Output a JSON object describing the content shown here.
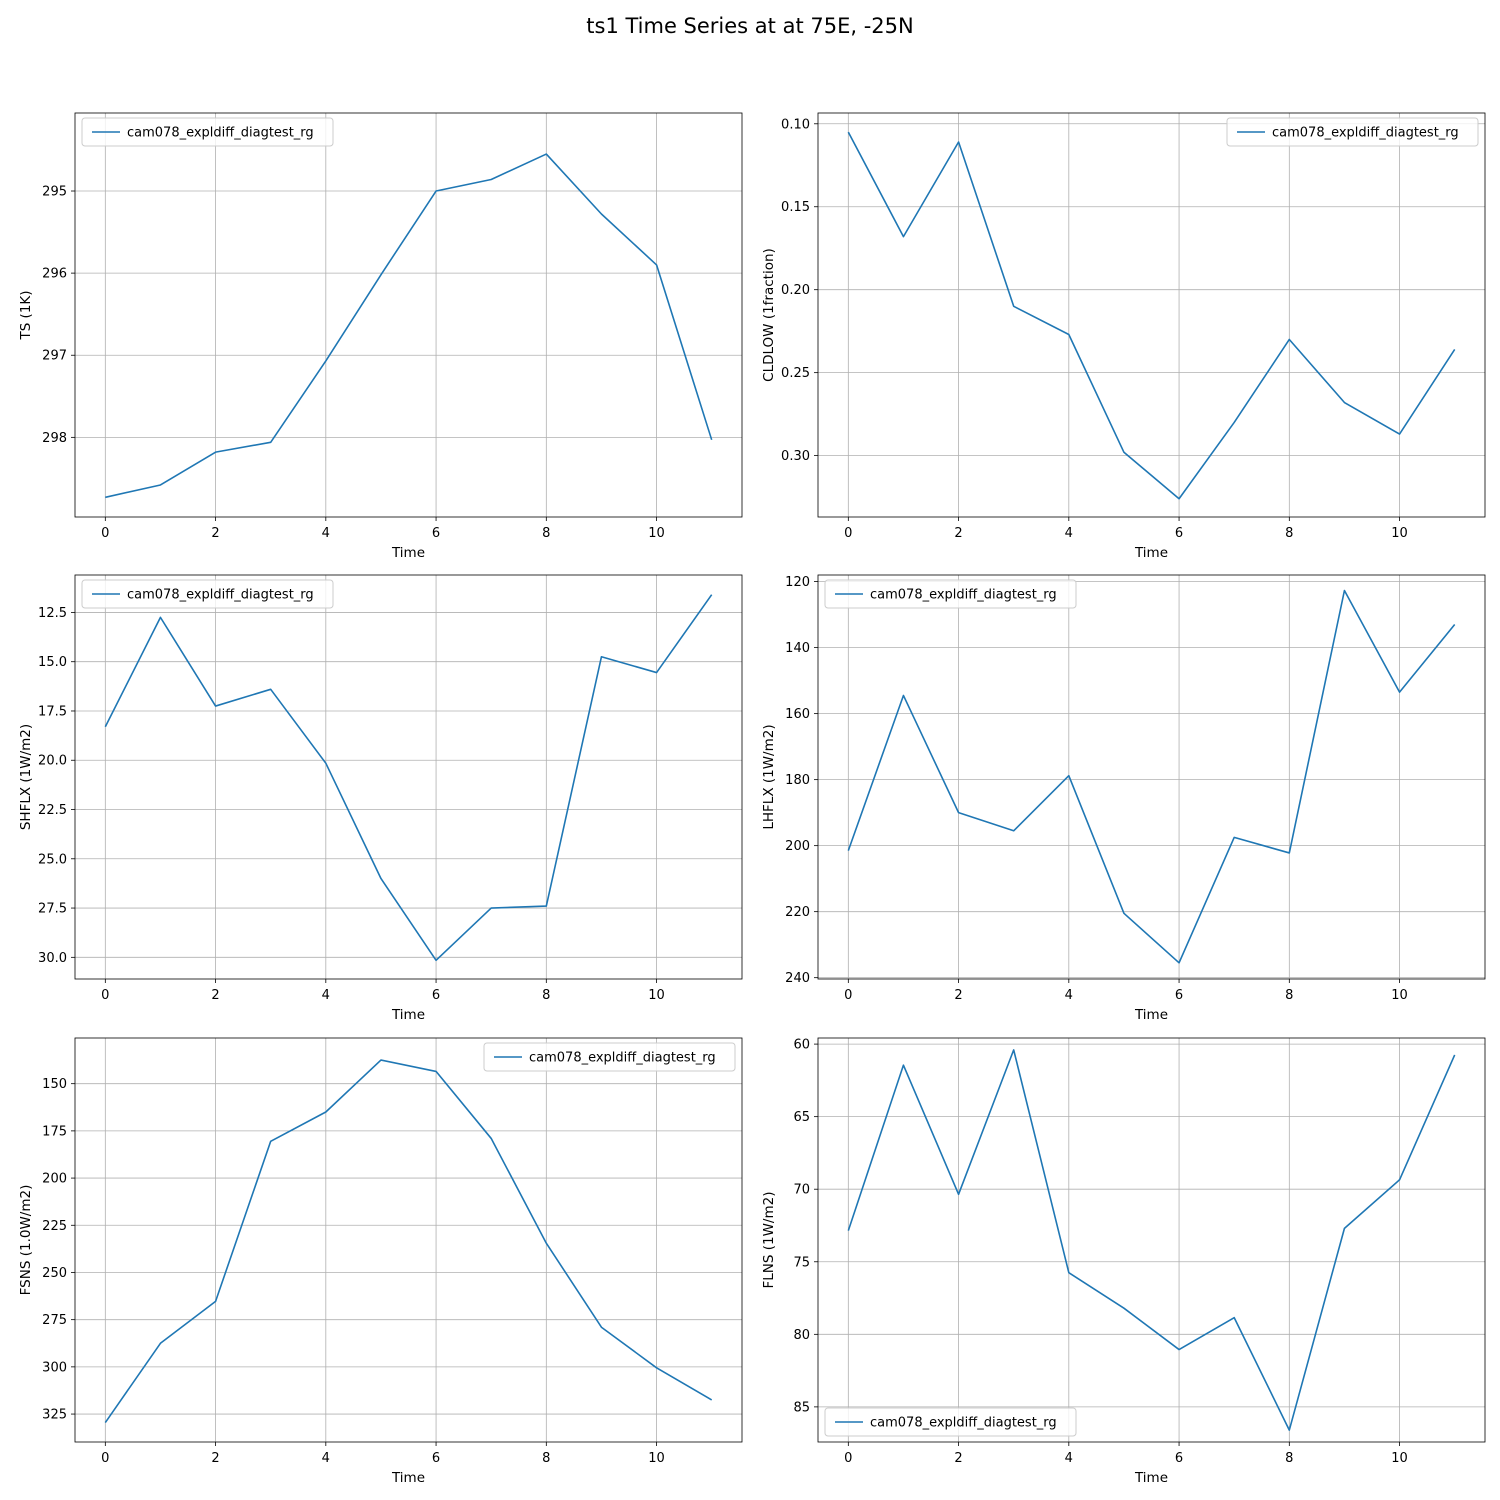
{
  "figure": {
    "title": "ts1 Time Series at at 75E, -25N"
  },
  "chart_data": [
    {
      "type": "line",
      "xlabel": "Time",
      "ylabel": "TS (1K)",
      "x": [
        0,
        1,
        2,
        3,
        4,
        5,
        6,
        7,
        8,
        9,
        10,
        11
      ],
      "series": [
        {
          "name": "cam078_expldiff_diagtest_rg",
          "values": [
            298.73,
            298.58,
            298.18,
            298.06,
            297.07,
            296.02,
            295.0,
            294.86,
            294.55,
            295.28,
            295.9,
            298.03
          ]
        }
      ],
      "ylim": [
        294.05,
        298.97
      ],
      "yinverted": true,
      "yticks": [
        295,
        296,
        297,
        298
      ],
      "ytick_labels": [
        "295",
        "296",
        "297",
        "298"
      ],
      "xticks": [
        0,
        2,
        4,
        6,
        8,
        10
      ],
      "xtick_labels": [
        "0",
        "2",
        "4",
        "6",
        "8",
        "10"
      ],
      "xlim": [
        -0.55,
        11.55
      ],
      "grid": true,
      "legend": "upper left",
      "color": "#1f77b4"
    },
    {
      "type": "line",
      "xlabel": "Time",
      "ylabel": "CLDLOW (1fraction)",
      "x": [
        0,
        1,
        2,
        3,
        4,
        5,
        6,
        7,
        8,
        9,
        10,
        11
      ],
      "series": [
        {
          "name": "cam078_expldiff_diagtest_rg",
          "values": [
            0.105,
            0.168,
            0.111,
            0.21,
            0.227,
            0.298,
            0.326,
            0.28,
            0.23,
            0.268,
            0.287,
            0.236
          ]
        }
      ],
      "ylim": [
        0.0935,
        0.337
      ],
      "yinverted": true,
      "yticks": [
        0.1,
        0.15,
        0.2,
        0.25,
        0.3
      ],
      "ytick_labels": [
        "0.10",
        "0.15",
        "0.20",
        "0.25",
        "0.30"
      ],
      "xticks": [
        0,
        2,
        4,
        6,
        8,
        10
      ],
      "xtick_labels": [
        "0",
        "2",
        "4",
        "6",
        "8",
        "10"
      ],
      "xlim": [
        -0.55,
        11.55
      ],
      "grid": true,
      "legend": "upper right",
      "color": "#1f77b4"
    },
    {
      "type": "line",
      "xlabel": "Time",
      "ylabel": "SHFLX (1W/m2)",
      "x": [
        0,
        1,
        2,
        3,
        4,
        5,
        6,
        7,
        8,
        9,
        10,
        11
      ],
      "series": [
        {
          "name": "cam078_expldiff_diagtest_rg",
          "values": [
            18.3,
            12.75,
            17.25,
            16.4,
            20.15,
            26.0,
            30.15,
            27.5,
            27.4,
            14.75,
            15.55,
            11.6
          ]
        }
      ],
      "ylim": [
        10.6,
        31.1
      ],
      "yinverted": true,
      "yticks": [
        12.5,
        15.0,
        17.5,
        20.0,
        22.5,
        25.0,
        27.5,
        30.0
      ],
      "ytick_labels": [
        "12.5",
        "15.0",
        "17.5",
        "20.0",
        "22.5",
        "25.0",
        "27.5",
        "30.0"
      ],
      "xticks": [
        0,
        2,
        4,
        6,
        8,
        10
      ],
      "xtick_labels": [
        "0",
        "2",
        "4",
        "6",
        "8",
        "10"
      ],
      "xlim": [
        -0.55,
        11.55
      ],
      "grid": true,
      "legend": "upper left",
      "color": "#1f77b4"
    },
    {
      "type": "line",
      "xlabel": "Time",
      "ylabel": "LHFLX (1W/m2)",
      "x": [
        0,
        1,
        2,
        3,
        4,
        5,
        6,
        7,
        8,
        9,
        10,
        11
      ],
      "series": [
        {
          "name": "cam078_expldiff_diagtest_rg",
          "values": [
            201.5,
            154.5,
            190.0,
            195.5,
            178.8,
            220.5,
            235.5,
            197.5,
            202.2,
            122.7,
            153.5,
            133.0
          ]
        }
      ],
      "ylim": [
        118.0,
        240.4
      ],
      "yinverted": true,
      "yticks": [
        120,
        140,
        160,
        180,
        200,
        220,
        240
      ],
      "ytick_labels": [
        "120",
        "140",
        "160",
        "180",
        "200",
        "220",
        "240"
      ],
      "xticks": [
        0,
        2,
        4,
        6,
        8,
        10
      ],
      "xtick_labels": [
        "0",
        "2",
        "4",
        "6",
        "8",
        "10"
      ],
      "xlim": [
        -0.55,
        11.55
      ],
      "grid": true,
      "legend": "upper left",
      "color": "#1f77b4"
    },
    {
      "type": "line",
      "xlabel": "Time",
      "ylabel": "FSNS (1.0W/m2)",
      "x": [
        0,
        1,
        2,
        3,
        4,
        5,
        6,
        7,
        8,
        9,
        10,
        11
      ],
      "series": [
        {
          "name": "cam078_expldiff_diagtest_rg",
          "values": [
            329.5,
            287.5,
            265.3,
            180.5,
            165.0,
            137.5,
            143.5,
            179.0,
            234.5,
            279.0,
            300.5,
            317.5
          ]
        }
      ],
      "ylim": [
        125.8,
        339.8
      ],
      "yinverted": true,
      "yticks": [
        150,
        175,
        200,
        225,
        250,
        275,
        300,
        325
      ],
      "ytick_labels": [
        "150",
        "175",
        "200",
        "225",
        "250",
        "275",
        "300",
        "325"
      ],
      "xticks": [
        0,
        2,
        4,
        6,
        8,
        10
      ],
      "xtick_labels": [
        "0",
        "2",
        "4",
        "6",
        "8",
        "10"
      ],
      "xlim": [
        -0.55,
        11.55
      ],
      "grid": true,
      "legend": "upper right",
      "color": "#1f77b4"
    },
    {
      "type": "line",
      "xlabel": "Time",
      "ylabel": "FLNS (1W/m2)",
      "x": [
        0,
        1,
        2,
        3,
        4,
        5,
        6,
        7,
        8,
        9,
        10,
        11
      ],
      "series": [
        {
          "name": "cam078_expldiff_diagtest_rg",
          "values": [
            72.85,
            61.45,
            70.35,
            60.4,
            75.75,
            78.2,
            81.05,
            78.85,
            86.6,
            72.7,
            69.35,
            60.75
          ]
        }
      ],
      "ylim": [
        59.58,
        87.42
      ],
      "yinverted": true,
      "yticks": [
        60,
        65,
        70,
        75,
        80,
        85
      ],
      "ytick_labels": [
        "60",
        "65",
        "70",
        "75",
        "80",
        "85"
      ],
      "xticks": [
        0,
        2,
        4,
        6,
        8,
        10
      ],
      "xtick_labels": [
        "0",
        "2",
        "4",
        "6",
        "8",
        "10"
      ],
      "xlim": [
        -0.55,
        11.55
      ],
      "grid": true,
      "legend": "lower left",
      "color": "#1f77b4"
    }
  ]
}
